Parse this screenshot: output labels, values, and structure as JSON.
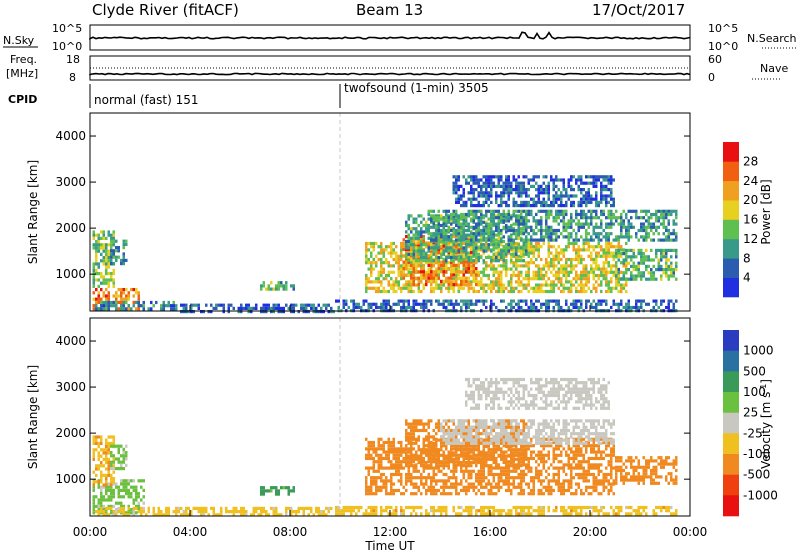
{
  "header": {
    "station": "Clyde River (fitACF)",
    "beam": "Beam 13",
    "date": "17/Oct/2017"
  },
  "strip_panels": {
    "nsky": {
      "label": "N.Sky",
      "right_label": "N.Search",
      "left_ticks": [
        "10^5",
        "10^0"
      ],
      "right_ticks": [
        "10^5",
        "10^0"
      ]
    },
    "freq": {
      "label_line1": "Freq.",
      "label_line2": "[MHz]",
      "right_label": "Nave",
      "left_ticks": [
        "18",
        "8"
      ],
      "right_ticks": [
        "60",
        "0"
      ]
    },
    "cpid": {
      "label": "CPID",
      "modes": [
        {
          "text": "normal (fast) 151",
          "start_hour": 0
        },
        {
          "text": "twofsound (1-min) 3505",
          "start_hour": 10.0
        }
      ]
    }
  },
  "chart_data": [
    {
      "type": "heatmap",
      "name": "power",
      "ylabel": "Slant Range [km]",
      "xlabel": "",
      "xlim_hours": [
        0,
        24
      ],
      "ylim": [
        200,
        4500
      ],
      "yticks": [
        1000,
        2000,
        3000,
        4000
      ],
      "colorbar": {
        "label": "Power [dB]",
        "ticks": [
          "4",
          "8",
          "12",
          "16",
          "20",
          "24",
          "28"
        ],
        "tick_values": [
          4,
          8,
          12,
          16,
          20,
          24,
          28
        ],
        "range": [
          0,
          32
        ],
        "colors": [
          "#2030e0",
          "#2a5cb0",
          "#3a9a8a",
          "#5fbf50",
          "#e8d020",
          "#f0a020",
          "#f06010",
          "#e81010"
        ]
      },
      "regions": [
        {
          "t0": 0.1,
          "t1": 2.0,
          "r0": 250,
          "r1": 700,
          "value": 24
        },
        {
          "t0": 0.1,
          "t1": 1.0,
          "r0": 700,
          "r1": 1950,
          "value": 14
        },
        {
          "t0": 0.8,
          "t1": 1.5,
          "r0": 1200,
          "r1": 1750,
          "value": 10
        },
        {
          "t0": 0.2,
          "t1": 3.5,
          "r0": 250,
          "r1": 420,
          "value": 8
        },
        {
          "t0": 3.5,
          "t1": 9.8,
          "r0": 220,
          "r1": 360,
          "value": 6
        },
        {
          "t0": 6.8,
          "t1": 8.2,
          "r0": 650,
          "r1": 850,
          "value": 12
        },
        {
          "t0": 11.0,
          "t1": 21.5,
          "r0": 600,
          "r1": 1700,
          "value": 18
        },
        {
          "t0": 12.5,
          "t1": 15.5,
          "r0": 750,
          "r1": 1850,
          "value": 24
        },
        {
          "t0": 12.6,
          "t1": 17.5,
          "r0": 1300,
          "r1": 2300,
          "value": 12
        },
        {
          "t0": 13.5,
          "t1": 23.5,
          "r0": 1750,
          "r1": 2400,
          "value": 10
        },
        {
          "t0": 14.5,
          "t1": 21.0,
          "r0": 2500,
          "r1": 3150,
          "value": 6
        },
        {
          "t0": 21.0,
          "t1": 23.5,
          "r0": 900,
          "r1": 1550,
          "value": 12
        },
        {
          "t0": 9.8,
          "t1": 23.5,
          "r0": 220,
          "r1": 450,
          "value": 6
        }
      ]
    },
    {
      "type": "heatmap",
      "name": "velocity",
      "ylabel": "Slant Range [km]",
      "xlabel": "Time UT",
      "xlim_hours": [
        0,
        24
      ],
      "xticks": [
        "00:00",
        "04:00",
        "08:00",
        "12:00",
        "16:00",
        "20:00",
        "00:00"
      ],
      "ylim": [
        200,
        4500
      ],
      "yticks": [
        1000,
        2000,
        3000,
        4000
      ],
      "colorbar": {
        "label": "Velocity [m s^-1]",
        "ticks": [
          "1000",
          "500",
          "100",
          "25",
          "-25",
          "-100",
          "-500",
          "-1000"
        ],
        "colors": [
          "#2a3cc0",
          "#2a70a0",
          "#3a9a5a",
          "#6cc040",
          "#c8c8c0",
          "#f0c020",
          "#f08a20",
          "#f04010",
          "#e81010"
        ]
      },
      "regions": [
        {
          "t0": 0.1,
          "t1": 2.2,
          "r0": 250,
          "r1": 1000,
          "value": 40
        },
        {
          "t0": 0.1,
          "t1": 1.0,
          "r0": 900,
          "r1": 1950,
          "value": -80
        },
        {
          "t0": 0.8,
          "t1": 1.5,
          "r0": 1200,
          "r1": 1750,
          "value": 50
        },
        {
          "t0": 0.2,
          "t1": 9.8,
          "r0": 220,
          "r1": 400,
          "value": -50
        },
        {
          "t0": 6.8,
          "t1": 8.2,
          "r0": 650,
          "r1": 850,
          "value": 150
        },
        {
          "t0": 11.0,
          "t1": 21.0,
          "r0": 650,
          "r1": 1900,
          "value": -300
        },
        {
          "t0": 12.6,
          "t1": 17.5,
          "r0": 1300,
          "r1": 2300,
          "value": -300
        },
        {
          "t0": 14.0,
          "t1": 21.0,
          "r0": 1750,
          "r1": 2300,
          "value": 0
        },
        {
          "t0": 15.0,
          "t1": 20.8,
          "r0": 2550,
          "r1": 3200,
          "value": 0
        },
        {
          "t0": 21.0,
          "t1": 23.5,
          "r0": 900,
          "r1": 1500,
          "value": -300
        },
        {
          "t0": 9.8,
          "t1": 23.5,
          "r0": 220,
          "r1": 420,
          "value": -60
        }
      ]
    }
  ]
}
